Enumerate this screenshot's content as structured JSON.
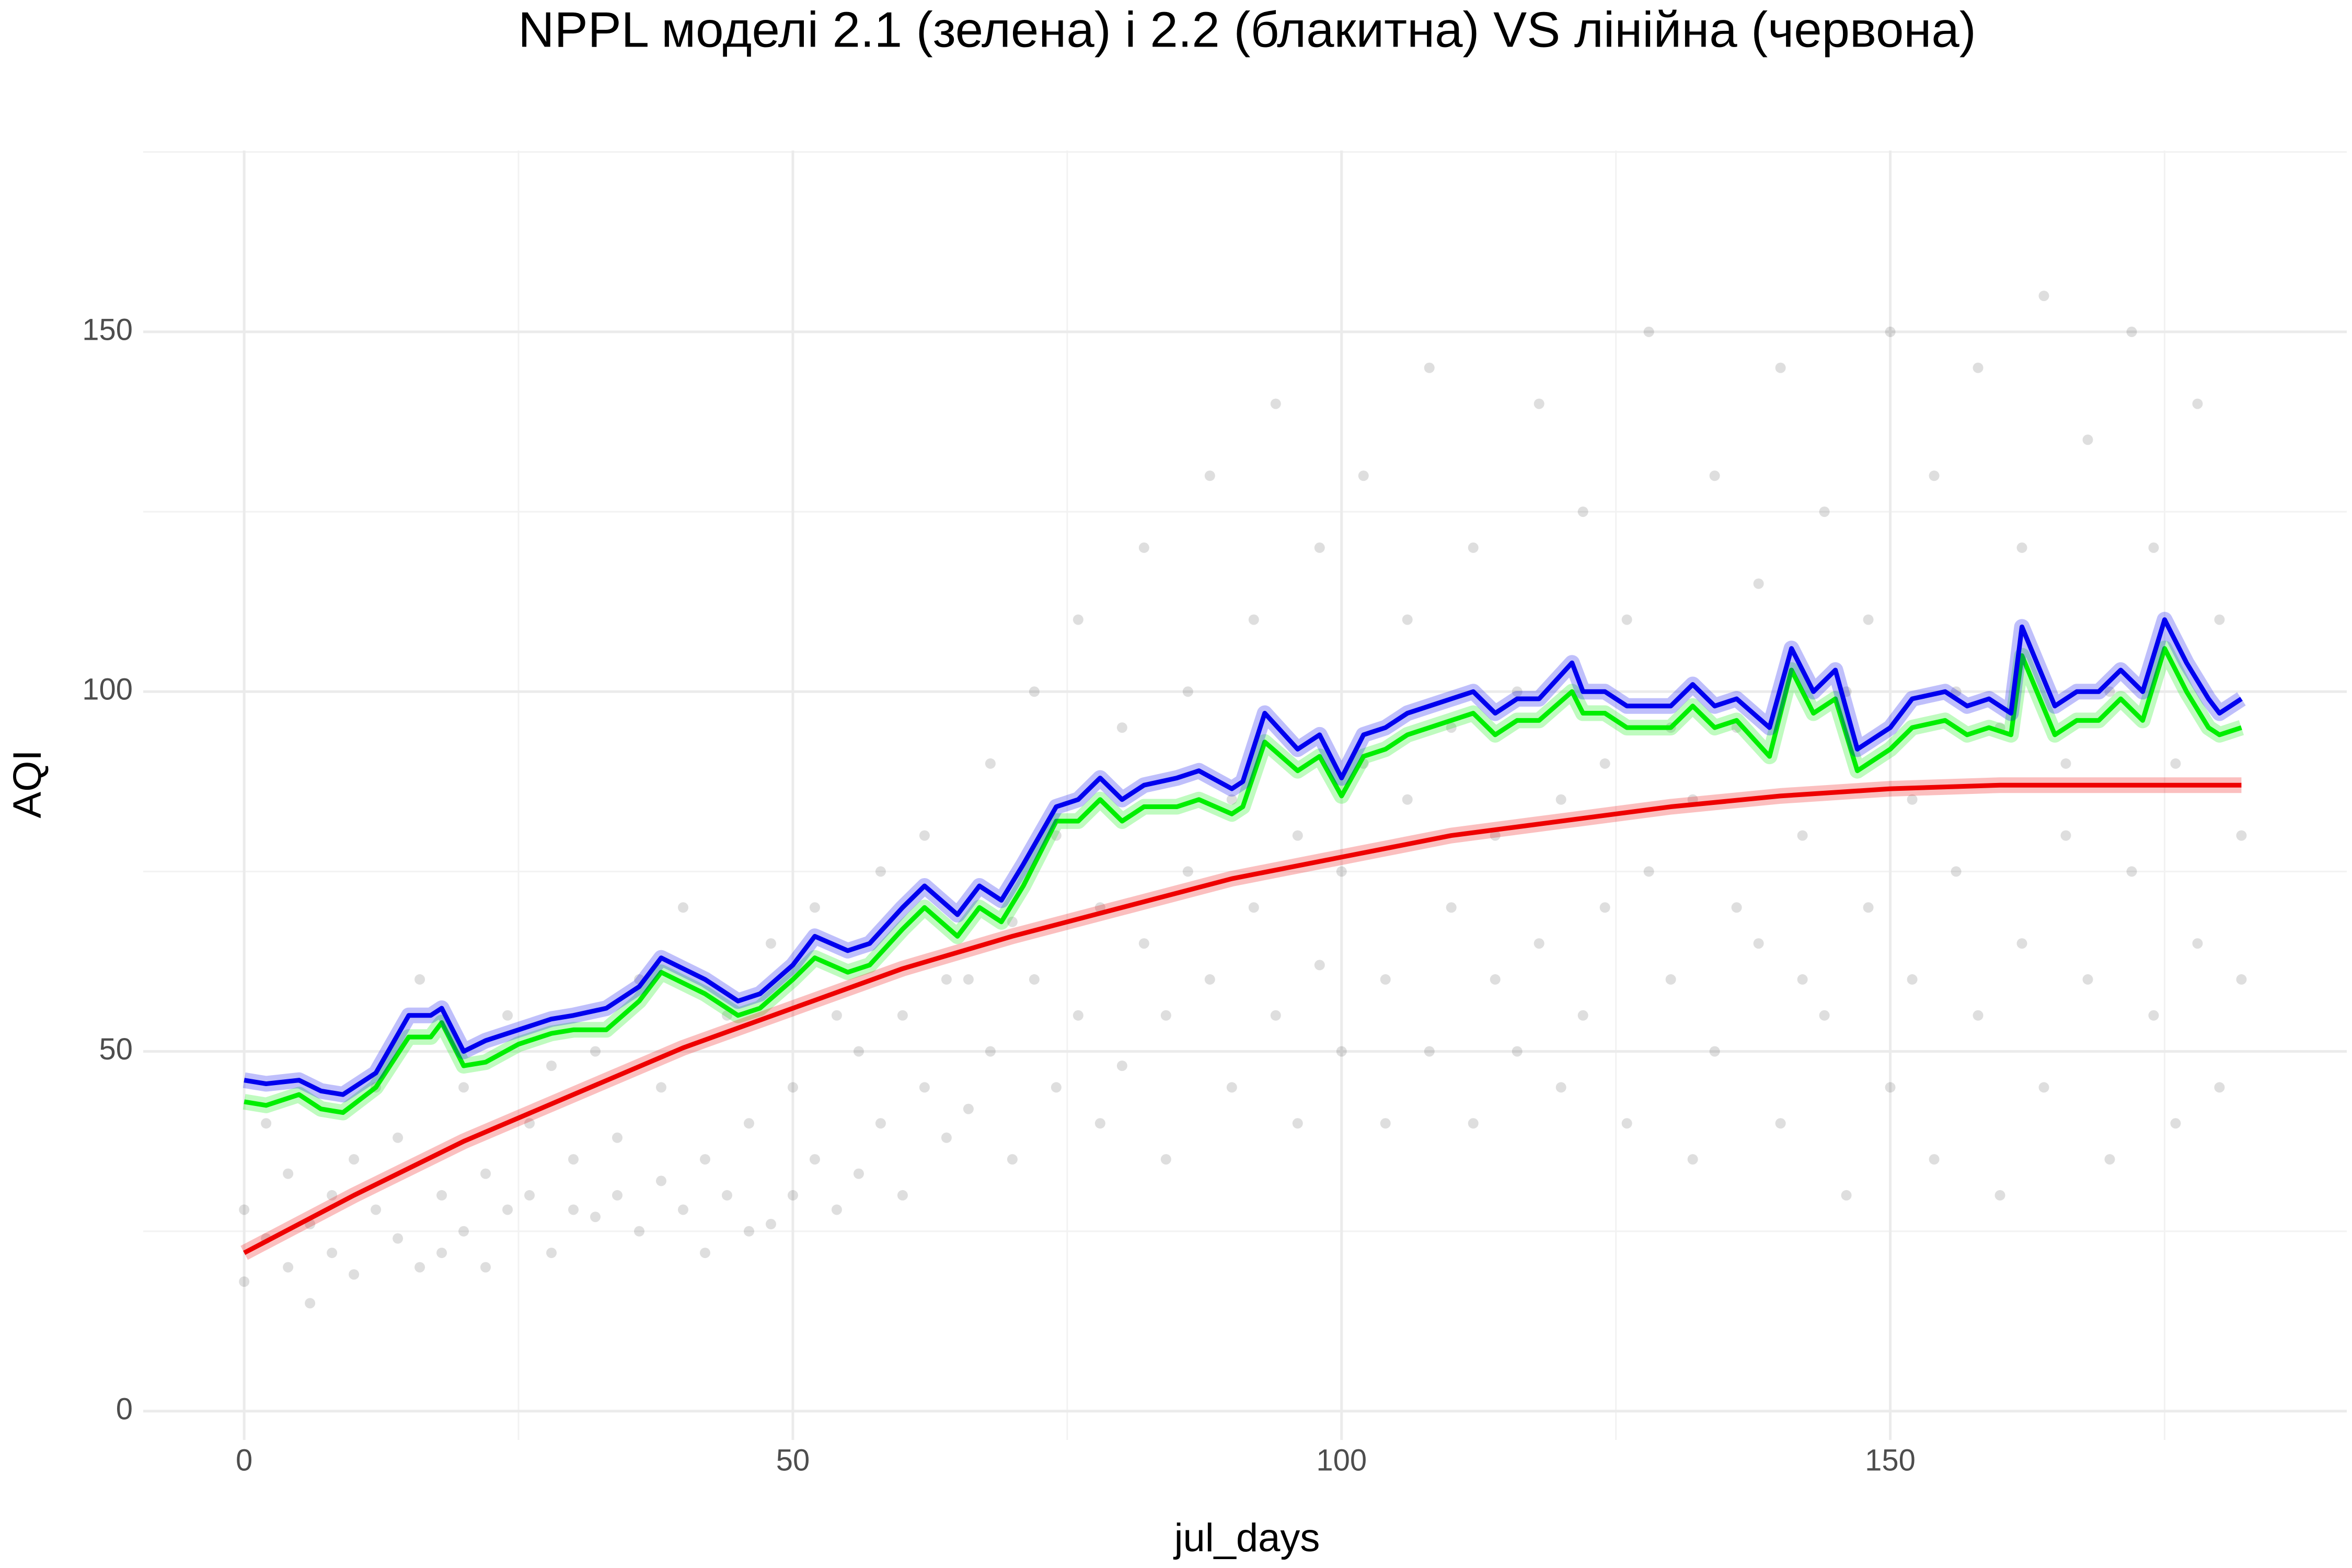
{
  "chart_data": {
    "type": "scatter",
    "title": "NPPL моделі 2.1 (зелена) і 2.2 (блакитна) VS лінійна (червона)",
    "x_label": "jul_days",
    "y_label": "AQI",
    "xlim": [
      -9.2,
      191.6
    ],
    "ylim": [
      -4,
      175.2
    ],
    "xticks": [
      0,
      50,
      100,
      150
    ],
    "yticks": [
      0,
      50,
      100,
      150
    ],
    "x_minor_ticks": [
      25,
      75,
      125,
      175
    ],
    "y_minor_ticks": [
      25,
      75,
      125,
      175
    ],
    "grid": true,
    "series": [
      {
        "mode": "points",
        "color": "#000000",
        "opacity": 0.13,
        "x": [
          0,
          0,
          2,
          2,
          4,
          4,
          6,
          6,
          8,
          8,
          10,
          10,
          12,
          12,
          14,
          14,
          16,
          16,
          18,
          18,
          20,
          20,
          22,
          22,
          24,
          24,
          26,
          26,
          28,
          28,
          30,
          30,
          32,
          32,
          34,
          34,
          36,
          36,
          38,
          38,
          40,
          40,
          42,
          42,
          44,
          44,
          46,
          46,
          48,
          48,
          50,
          50,
          52,
          52,
          54,
          54,
          56,
          56,
          58,
          58,
          60,
          60,
          62,
          62,
          64,
          64,
          66,
          66,
          68,
          68,
          70,
          70,
          72,
          72,
          74,
          74,
          76,
          76,
          78,
          78,
          80,
          80,
          82,
          82,
          84,
          84,
          86,
          86,
          88,
          88,
          90,
          90,
          92,
          92,
          94,
          94,
          96,
          96,
          98,
          98,
          100,
          100,
          102,
          102,
          104,
          104,
          106,
          106,
          108,
          108,
          110,
          110,
          112,
          112,
          114,
          114,
          116,
          116,
          118,
          118,
          120,
          120,
          122,
          122,
          124,
          124,
          126,
          126,
          128,
          128,
          130,
          130,
          132,
          132,
          134,
          134,
          136,
          136,
          138,
          138,
          140,
          140,
          142,
          142,
          144,
          144,
          146,
          146,
          148,
          148,
          150,
          150,
          152,
          152,
          154,
          154,
          156,
          156,
          158,
          158,
          160,
          160,
          162,
          162,
          164,
          164,
          166,
          166,
          168,
          168,
          170,
          170,
          172,
          172,
          174,
          174,
          176,
          176,
          178,
          178,
          180,
          180,
          182,
          182
        ],
        "values": [
          18,
          28,
          24,
          40,
          20,
          33,
          15,
          26,
          22,
          30,
          19,
          35,
          28,
          45,
          24,
          38,
          20,
          60,
          30,
          22,
          25,
          45,
          33,
          20,
          28,
          55,
          30,
          40,
          22,
          48,
          35,
          28,
          27,
          50,
          38,
          30,
          25,
          60,
          32,
          45,
          28,
          70,
          35,
          22,
          30,
          55,
          40,
          25,
          26,
          65,
          45,
          30,
          35,
          70,
          28,
          55,
          50,
          33,
          40,
          75,
          55,
          30,
          45,
          80,
          38,
          60,
          60,
          42,
          50,
          90,
          35,
          68,
          60,
          100,
          45,
          80,
          55,
          110,
          70,
          40,
          48,
          95,
          65,
          120,
          55,
          35,
          75,
          100,
          60,
          130,
          45,
          85,
          70,
          110,
          55,
          140,
          80,
          40,
          62,
          120,
          75,
          50,
          90,
          130,
          60,
          40,
          85,
          110,
          50,
          145,
          70,
          95,
          40,
          120,
          80,
          60,
          100,
          50,
          65,
          140,
          85,
          45,
          55,
          125,
          90,
          70,
          40,
          110,
          75,
          150,
          60,
          95,
          85,
          35,
          50,
          130,
          95,
          70,
          65,
          115,
          40,
          145,
          80,
          60,
          55,
          125,
          100,
          30,
          70,
          110,
          45,
          150,
          85,
          60,
          35,
          130,
          75,
          100,
          55,
          145,
          95,
          30,
          65,
          120,
          45,
          155,
          80,
          90,
          60,
          135,
          35,
          100,
          75,
          150,
          55,
          120,
          90,
          40,
          65,
          140,
          45,
          110,
          80,
          60
        ]
      },
      {
        "mode": "line",
        "color": "#00ee00",
        "x": [
          0,
          2,
          5,
          7,
          9,
          12,
          15,
          17,
          18,
          20,
          22,
          25,
          28,
          30,
          33,
          36,
          38,
          42,
          45,
          47,
          50,
          52,
          55,
          57,
          60,
          62,
          65,
          67,
          69,
          71,
          74,
          76,
          78,
          80,
          82,
          85,
          87,
          90,
          91,
          93,
          96,
          98,
          100,
          102,
          104,
          106,
          108,
          110,
          112,
          114,
          116,
          118,
          121,
          122,
          124,
          126,
          128,
          130,
          132,
          134,
          136,
          139,
          141,
          143,
          145,
          147,
          148,
          150,
          152,
          155,
          157,
          159,
          161,
          162,
          165,
          167,
          169,
          171,
          173,
          175,
          177,
          179,
          180,
          182
        ],
        "values": [
          43,
          42.5,
          44,
          42,
          41.5,
          45,
          52,
          52,
          54,
          48,
          48.5,
          51,
          52.5,
          53,
          53,
          57,
          61,
          58,
          55,
          56,
          60,
          63,
          61,
          62,
          67,
          70,
          66,
          70,
          68,
          73,
          82,
          82,
          85,
          82,
          84,
          84,
          85,
          83,
          84,
          93,
          89,
          91,
          85.5,
          91,
          92,
          94,
          95,
          96,
          97,
          94,
          96,
          96,
          100,
          97,
          97,
          95,
          95,
          95,
          98,
          95,
          96,
          91,
          103,
          97,
          99,
          89,
          90,
          92,
          95,
          96,
          94,
          95,
          94,
          105,
          94,
          96,
          96,
          99,
          96,
          106,
          100,
          95,
          94,
          95
        ]
      },
      {
        "mode": "line",
        "color": "#0000ee",
        "x": [
          0,
          2,
          5,
          7,
          9,
          12,
          15,
          17,
          18,
          20,
          22,
          25,
          28,
          30,
          33,
          36,
          38,
          42,
          45,
          47,
          50,
          52,
          55,
          57,
          60,
          62,
          65,
          67,
          69,
          71,
          74,
          76,
          78,
          80,
          82,
          85,
          87,
          90,
          91,
          93,
          96,
          98,
          100,
          102,
          104,
          106,
          108,
          110,
          112,
          114,
          116,
          118,
          121,
          122,
          124,
          126,
          128,
          130,
          132,
          134,
          136,
          139,
          141,
          143,
          145,
          147,
          148,
          150,
          152,
          155,
          157,
          159,
          161,
          162,
          165,
          167,
          169,
          171,
          173,
          175,
          177,
          179,
          180,
          182
        ],
        "values": [
          46,
          45.5,
          46,
          44.5,
          44,
          47,
          55,
          55,
          56,
          50,
          51.5,
          53,
          54.5,
          55,
          56,
          59,
          63,
          60,
          57,
          58,
          62,
          66,
          64,
          65,
          70,
          73,
          69,
          73,
          71,
          76,
          84,
          85,
          88,
          85,
          87,
          88,
          89,
          86.5,
          87.5,
          97,
          92,
          94,
          88,
          94,
          95,
          97,
          98,
          99,
          100,
          97,
          99,
          99,
          104,
          100,
          100,
          98,
          98,
          98,
          101,
          98,
          99,
          95,
          106,
          100,
          103,
          92,
          93,
          95,
          99,
          100,
          98,
          99,
          97,
          109,
          98,
          100,
          100,
          103,
          100,
          110,
          104,
          99,
          97,
          99
        ]
      },
      {
        "mode": "line",
        "color": "#ee0000",
        "x": [
          0,
          10,
          20,
          30,
          40,
          50,
          60,
          70,
          80,
          90,
          100,
          110,
          120,
          130,
          140,
          150,
          160,
          170,
          182
        ],
        "values": [
          22,
          30,
          37.5,
          44,
          50.5,
          56,
          61.5,
          66,
          70,
          74,
          77,
          80,
          82,
          84,
          85.5,
          86.5,
          87,
          87,
          87
        ]
      }
    ]
  }
}
